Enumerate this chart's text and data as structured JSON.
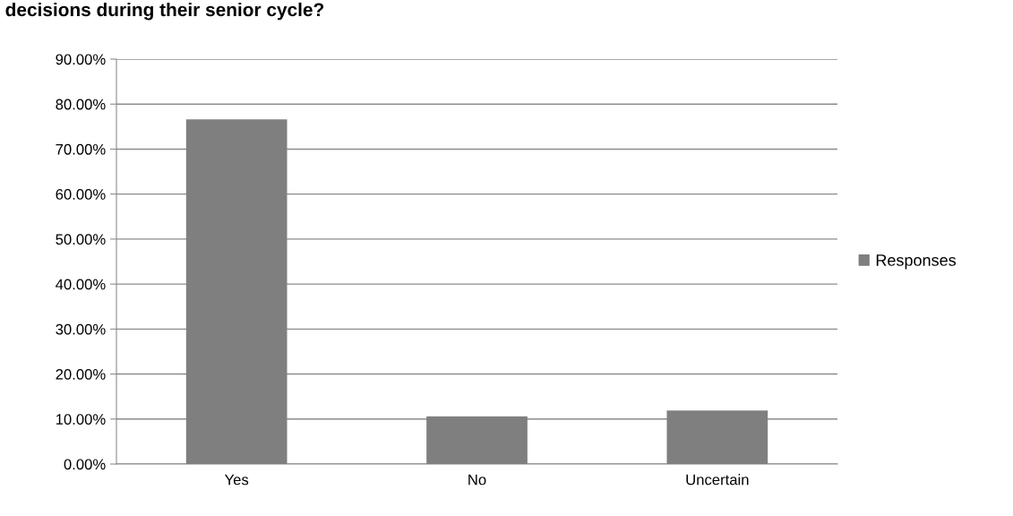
{
  "chart_data": {
    "type": "bar",
    "title": "decisions during their senior cycle?",
    "categories": [
      "Yes",
      "No",
      "Uncertain"
    ],
    "series": [
      {
        "name": "Responses",
        "color": "#7f7f7f",
        "values": [
          76.6,
          10.6,
          11.9
        ]
      }
    ],
    "ylim": [
      0,
      90
    ],
    "yticks": [
      {
        "value": 0,
        "label": "0.00%"
      },
      {
        "value": 10,
        "label": "10.00%"
      },
      {
        "value": 20,
        "label": "20.00%"
      },
      {
        "value": 30,
        "label": "30.00%"
      },
      {
        "value": 40,
        "label": "40.00%"
      },
      {
        "value": 50,
        "label": "50.00%"
      },
      {
        "value": 60,
        "label": "60.00%"
      },
      {
        "value": 70,
        "label": "70.00%"
      },
      {
        "value": 80,
        "label": "80.00%"
      },
      {
        "value": 90,
        "label": "90.00%"
      }
    ],
    "grid": "y",
    "legend": "right"
  }
}
